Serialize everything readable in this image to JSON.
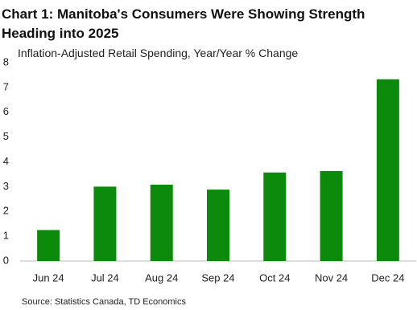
{
  "chart_data": {
    "type": "bar",
    "title": "Chart 1: Manitoba's Consumers Were Showing Strength Heading into 2025",
    "subtitle": "Inflation-Adjusted Retail Spending, Year/Year % Change",
    "source": "Source: Statistics Canada, TD Economics",
    "categories": [
      "Jun 24",
      "Jul 24",
      "Aug 24",
      "Sep 24",
      "Oct 24",
      "Nov 24",
      "Dec 24"
    ],
    "values": [
      1.25,
      3.0,
      3.08,
      2.88,
      3.57,
      3.63,
      7.33
    ],
    "color": "#0c8a0c",
    "ylim": [
      0,
      8
    ],
    "yticks": [
      0,
      1,
      2,
      3,
      4,
      5,
      6,
      7,
      8
    ],
    "grid": false
  }
}
